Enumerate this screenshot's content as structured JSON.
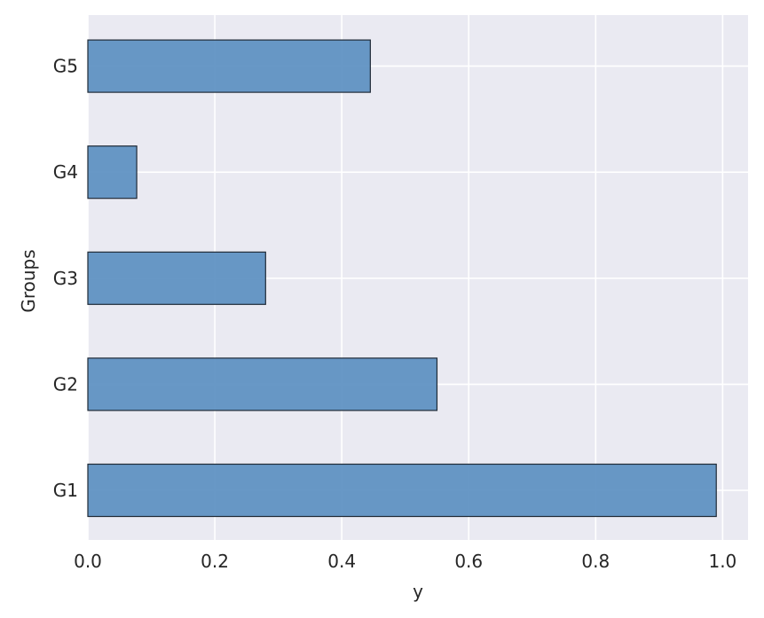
{
  "chart_data": {
    "type": "bar",
    "orientation": "horizontal",
    "categories": [
      "G1",
      "G2",
      "G3",
      "G4",
      "G5"
    ],
    "values": [
      0.99,
      0.55,
      0.28,
      0.077,
      0.445
    ],
    "title": "",
    "xlabel": "y",
    "ylabel": "Groups",
    "xlim": [
      0.0,
      1.04
    ],
    "xticks": [
      "0.0",
      "0.2",
      "0.4",
      "0.6",
      "0.8",
      "1.0"
    ],
    "grid": true,
    "legend": "none",
    "colors": {
      "bar_fill": "#5b8fc1",
      "bar_edge": "#1f2a36",
      "plot_background": "#eaeaf2",
      "grid": "#ffffff",
      "text": "#262626"
    }
  }
}
